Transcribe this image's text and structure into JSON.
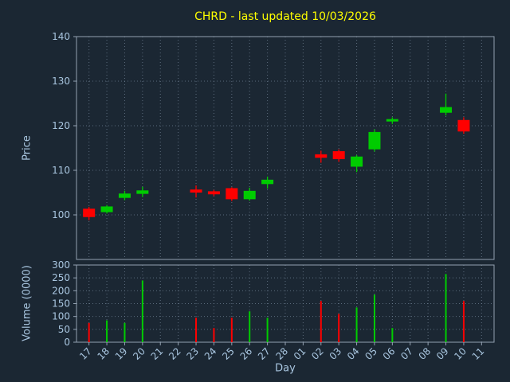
{
  "colors": {
    "background": "#1b2733",
    "title": "#ffff00",
    "axis_text": "#a9c6e0",
    "grid": "#76879a",
    "spine": "#93a1b1",
    "up": "#00cc00",
    "down": "#ff0000"
  },
  "chart_data": {
    "type": "candlestick",
    "title": "CHRD - last updated 10/03/2026",
    "xlabel": "Day",
    "price_ylabel": "Price",
    "volume_ylabel": "Volume (0000)",
    "grid": true,
    "x_ticklabels": [
      "17",
      "18",
      "19",
      "20",
      "21",
      "22",
      "23",
      "24",
      "25",
      "26",
      "27",
      "28",
      "01",
      "02",
      "03",
      "04",
      "05",
      "06",
      "07",
      "08",
      "09",
      "10",
      "11"
    ],
    "price_ylim": [
      90,
      140
    ],
    "price_yticks": [
      100,
      110,
      120,
      130,
      140
    ],
    "volume_ylim": [
      0,
      300
    ],
    "volume_yticks": [
      0,
      50,
      100,
      150,
      200,
      250,
      300
    ],
    "candles": [
      {
        "day": "17",
        "i": 0,
        "open": 101.3,
        "high": 101.8,
        "low": 98.8,
        "close": 99.6,
        "volume": 75
      },
      {
        "day": "18",
        "i": 1,
        "open": 100.7,
        "high": 102.2,
        "low": 100.3,
        "close": 101.8,
        "volume": 85
      },
      {
        "day": "19",
        "i": 2,
        "open": 103.9,
        "high": 105.4,
        "low": 103.3,
        "close": 104.7,
        "volume": 75
      },
      {
        "day": "20",
        "i": 3,
        "open": 104.8,
        "high": 106.3,
        "low": 104.0,
        "close": 105.4,
        "volume": 240
      },
      {
        "day": "23",
        "i": 6,
        "open": 105.6,
        "high": 106.6,
        "low": 103.9,
        "close": 105.1,
        "volume": 95
      },
      {
        "day": "24",
        "i": 7,
        "open": 105.2,
        "high": 105.6,
        "low": 104.2,
        "close": 104.7,
        "volume": 55
      },
      {
        "day": "25",
        "i": 8,
        "open": 105.9,
        "high": 106.2,
        "low": 103.1,
        "close": 103.6,
        "volume": 95
      },
      {
        "day": "26",
        "i": 9,
        "open": 103.6,
        "high": 106.1,
        "low": 103.2,
        "close": 105.3,
        "volume": 120
      },
      {
        "day": "27",
        "i": 10,
        "open": 107.0,
        "high": 108.6,
        "low": 105.9,
        "close": 107.8,
        "volume": 95
      },
      {
        "day": "02",
        "i": 13,
        "open": 113.5,
        "high": 114.4,
        "low": 111.7,
        "close": 112.9,
        "volume": 160
      },
      {
        "day": "03",
        "i": 14,
        "open": 114.2,
        "high": 114.7,
        "low": 111.9,
        "close": 112.6,
        "volume": 110
      },
      {
        "day": "04",
        "i": 15,
        "open": 110.9,
        "high": 113.4,
        "low": 109.6,
        "close": 113.0,
        "volume": 135
      },
      {
        "day": "05",
        "i": 16,
        "open": 114.8,
        "high": 119.2,
        "low": 114.2,
        "close": 118.5,
        "volume": 185
      },
      {
        "day": "06",
        "i": 17,
        "open": 121.1,
        "high": 121.9,
        "low": 120.4,
        "close": 121.4,
        "volume": 55
      },
      {
        "day": "09",
        "i": 20,
        "open": 123.0,
        "high": 127.2,
        "low": 122.3,
        "close": 124.1,
        "volume": 265
      },
      {
        "day": "10",
        "i": 21,
        "open": 121.2,
        "high": 121.9,
        "low": 118.2,
        "close": 118.8,
        "volume": 160
      }
    ]
  }
}
